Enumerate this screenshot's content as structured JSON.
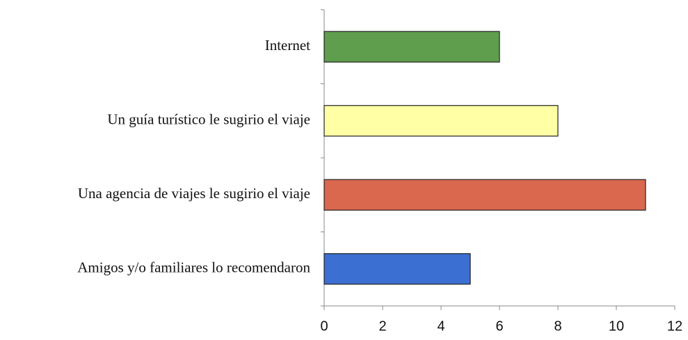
{
  "chart_data": {
    "type": "barh",
    "categories": [
      "Internet",
      "Un guía turístico le sugirio el viaje",
      "Una agencia de viajes le sugirio el viaje",
      "Amigos y/o familiares lo recomendaron"
    ],
    "values": [
      6,
      8,
      11,
      5
    ],
    "colors": [
      "#5f9e4c",
      "#ffffa6",
      "#d9684e",
      "#3b6fd1"
    ],
    "xlim": [
      0,
      12
    ],
    "xticks": [
      0,
      2,
      4,
      6,
      8,
      10,
      12
    ],
    "grid": false
  }
}
